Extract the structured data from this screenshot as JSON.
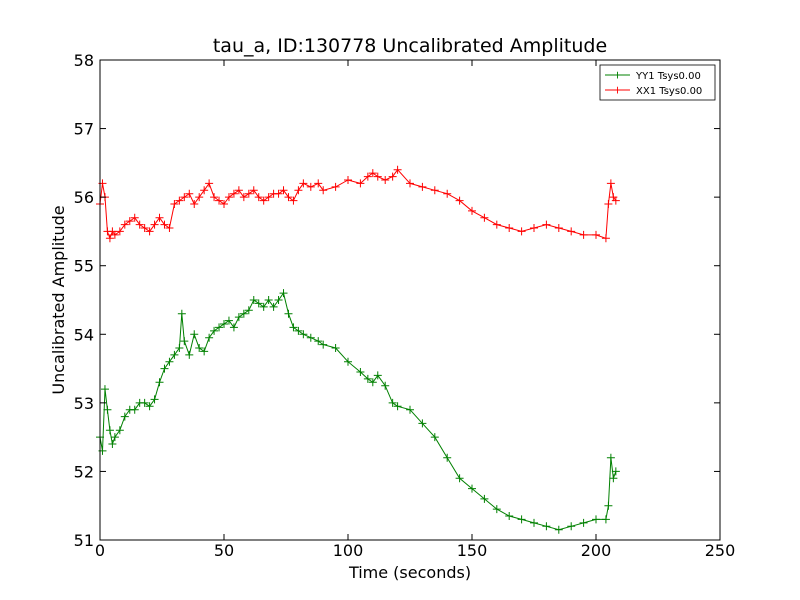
{
  "chart_data": {
    "type": "line",
    "title": "tau_a, ID:130778 Uncalibrated Amplitude",
    "xlabel": "Time (seconds)",
    "ylabel": "Uncalibrated Amplitude",
    "xlim": [
      0,
      250
    ],
    "ylim": [
      51,
      58
    ],
    "xticks": [
      0,
      50,
      100,
      150,
      200,
      250
    ],
    "yticks": [
      51,
      52,
      53,
      54,
      55,
      56,
      57,
      58
    ],
    "grid": false,
    "legend_position": "top-right",
    "marker": "+",
    "series": [
      {
        "name": "YY1 Tsys0.00",
        "color": "#008000",
        "x": [
          0,
          1,
          2,
          3,
          4,
          5,
          6,
          8,
          10,
          12,
          14,
          16,
          18,
          20,
          22,
          24,
          26,
          28,
          30,
          32,
          33,
          34,
          36,
          38,
          40,
          42,
          44,
          46,
          48,
          50,
          52,
          54,
          56,
          58,
          60,
          62,
          64,
          66,
          68,
          70,
          72,
          74,
          76,
          78,
          80,
          82,
          85,
          88,
          90,
          95,
          100,
          105,
          108,
          110,
          112,
          115,
          118,
          120,
          125,
          130,
          135,
          140,
          145,
          150,
          155,
          160,
          165,
          170,
          175,
          180,
          185,
          190,
          195,
          200,
          204,
          205,
          206,
          207,
          208
        ],
        "y": [
          52.5,
          52.3,
          53.2,
          52.9,
          52.6,
          52.4,
          52.5,
          52.6,
          52.8,
          52.9,
          52.9,
          53.0,
          53.0,
          52.95,
          53.05,
          53.3,
          53.5,
          53.6,
          53.7,
          53.8,
          54.3,
          53.9,
          53.7,
          54.0,
          53.8,
          53.75,
          53.95,
          54.05,
          54.1,
          54.15,
          54.2,
          54.1,
          54.25,
          54.3,
          54.35,
          54.5,
          54.45,
          54.4,
          54.5,
          54.4,
          54.5,
          54.6,
          54.3,
          54.1,
          54.05,
          54.0,
          53.95,
          53.9,
          53.85,
          53.8,
          53.6,
          53.45,
          53.35,
          53.3,
          53.4,
          53.25,
          53.0,
          52.95,
          52.9,
          52.7,
          52.5,
          52.2,
          51.9,
          51.75,
          51.6,
          51.45,
          51.35,
          51.3,
          51.25,
          51.2,
          51.15,
          51.2,
          51.25,
          51.3,
          51.3,
          51.5,
          52.2,
          51.9,
          52.0
        ]
      },
      {
        "name": "XX1 Tsys0.00",
        "color": "#ff0000",
        "x": [
          0,
          1,
          2,
          3,
          4,
          5,
          6,
          8,
          10,
          12,
          14,
          16,
          18,
          20,
          22,
          24,
          26,
          28,
          30,
          32,
          34,
          36,
          38,
          40,
          42,
          44,
          46,
          48,
          50,
          52,
          54,
          56,
          58,
          60,
          62,
          64,
          66,
          68,
          70,
          72,
          74,
          76,
          78,
          80,
          82,
          85,
          88,
          90,
          95,
          100,
          105,
          108,
          110,
          112,
          115,
          118,
          120,
          125,
          130,
          135,
          140,
          145,
          150,
          155,
          160,
          165,
          170,
          175,
          180,
          185,
          190,
          195,
          200,
          204,
          205,
          206,
          207,
          208
        ],
        "y": [
          55.9,
          56.2,
          56.0,
          55.5,
          55.4,
          55.5,
          55.45,
          55.5,
          55.6,
          55.65,
          55.7,
          55.6,
          55.55,
          55.5,
          55.6,
          55.7,
          55.6,
          55.55,
          55.9,
          55.95,
          56.0,
          56.05,
          55.9,
          56.0,
          56.1,
          56.2,
          56.0,
          55.95,
          55.9,
          56.0,
          56.05,
          56.1,
          56.0,
          56.05,
          56.1,
          56.0,
          55.95,
          56.0,
          56.05,
          56.05,
          56.1,
          56.0,
          55.95,
          56.1,
          56.2,
          56.15,
          56.2,
          56.1,
          56.15,
          56.25,
          56.2,
          56.3,
          56.35,
          56.3,
          56.25,
          56.3,
          56.4,
          56.2,
          56.15,
          56.1,
          56.05,
          55.95,
          55.8,
          55.7,
          55.6,
          55.55,
          55.5,
          55.55,
          55.6,
          55.55,
          55.5,
          55.45,
          55.45,
          55.4,
          55.9,
          56.2,
          56.0,
          55.95
        ]
      }
    ]
  }
}
